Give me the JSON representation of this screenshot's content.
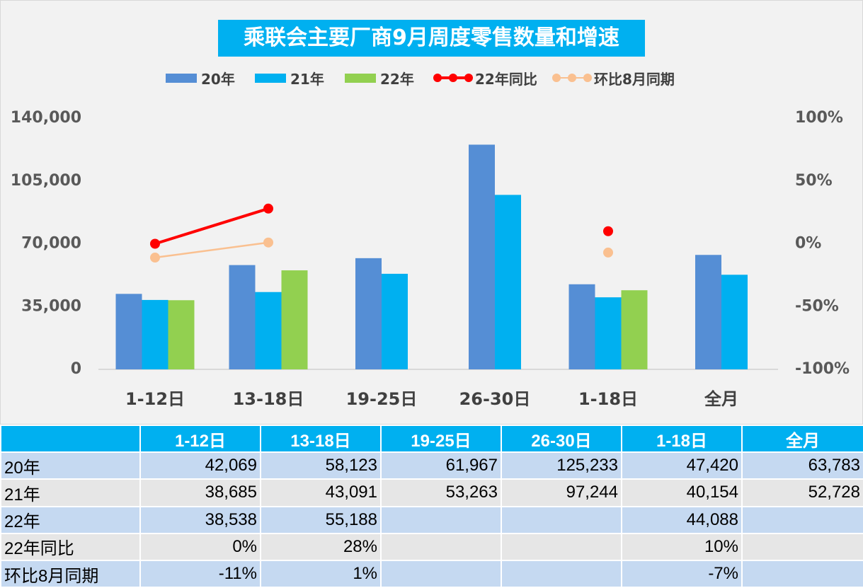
{
  "colors": {
    "y20": "#558ed5",
    "y21": "#00b0f0",
    "y22": "#92d050",
    "yoy22": "#ff0000",
    "mom": "#fac090",
    "title_bg": "#00b0f0",
    "table_header_bg": "#00b0f0",
    "band_a": "#c5d9f1",
    "band_b": "#e6e6e6"
  },
  "chart_data": {
    "type": "bar",
    "title": "乘联会主要厂商9月周度零售数量和增速",
    "categories": [
      "1-12日",
      "13-18日",
      "19-25日",
      "26-30日",
      "1-18日",
      "全月"
    ],
    "series": [
      {
        "name": "20年",
        "kind": "bar",
        "axis": "left",
        "color": "#558ed5",
        "values": [
          42069,
          58123,
          61967,
          125233,
          47420,
          63783
        ]
      },
      {
        "name": "21年",
        "kind": "bar",
        "axis": "left",
        "color": "#00b0f0",
        "values": [
          38685,
          43091,
          53263,
          97244,
          40154,
          52728
        ]
      },
      {
        "name": "22年",
        "kind": "bar",
        "axis": "left",
        "color": "#92d050",
        "values": [
          38538,
          55188,
          null,
          null,
          44088,
          null
        ]
      },
      {
        "name": "22年同比",
        "kind": "line",
        "axis": "right",
        "color": "#ff0000",
        "values": [
          0,
          28,
          null,
          null,
          10,
          null
        ]
      },
      {
        "name": "环比8月同期",
        "kind": "line",
        "axis": "right",
        "color": "#fac090",
        "values": [
          -11,
          1,
          null,
          null,
          -7,
          null
        ]
      }
    ],
    "y_left": {
      "ylim": [
        0,
        140000
      ],
      "ticks": [
        0,
        35000,
        70000,
        105000,
        140000
      ],
      "tick_labels": [
        "0",
        "35,000",
        "70,000",
        "105,000",
        "140,000"
      ]
    },
    "y_right": {
      "ylim": [
        -100,
        100
      ],
      "ticks": [
        -100,
        -50,
        0,
        50,
        100
      ],
      "tick_labels": [
        "-100%",
        "-50%",
        "0%",
        "50%",
        "100%"
      ]
    },
    "legend_position": "top",
    "grid": false
  },
  "legend": [
    {
      "label": "20年",
      "key": "y20"
    },
    {
      "label": "21年",
      "key": "y21"
    },
    {
      "label": "22年",
      "key": "y22"
    },
    {
      "label": "22年同比",
      "key": "yoy22"
    },
    {
      "label": "环比8月同期",
      "key": "mom"
    }
  ],
  "table": {
    "columns": [
      "1-12日",
      "13-18日",
      "19-25日",
      "26-30日",
      "1-18日",
      "全月"
    ],
    "rows": [
      {
        "label": "20年",
        "cells": [
          "42,069",
          "58,123",
          "61,967",
          "125,233",
          "47,420",
          "63,783"
        ]
      },
      {
        "label": "21年",
        "cells": [
          "38,685",
          "43,091",
          "53,263",
          "97,244",
          "40,154",
          "52,728"
        ]
      },
      {
        "label": "22年",
        "cells": [
          "38,538",
          "55,188",
          "",
          "",
          "44,088",
          ""
        ]
      },
      {
        "label": "22年同比",
        "cells": [
          "0%",
          "28%",
          "",
          "",
          "10%",
          ""
        ]
      },
      {
        "label": "环比8月同期",
        "cells": [
          "-11%",
          "1%",
          "",
          "",
          "-7%",
          ""
        ]
      }
    ]
  }
}
